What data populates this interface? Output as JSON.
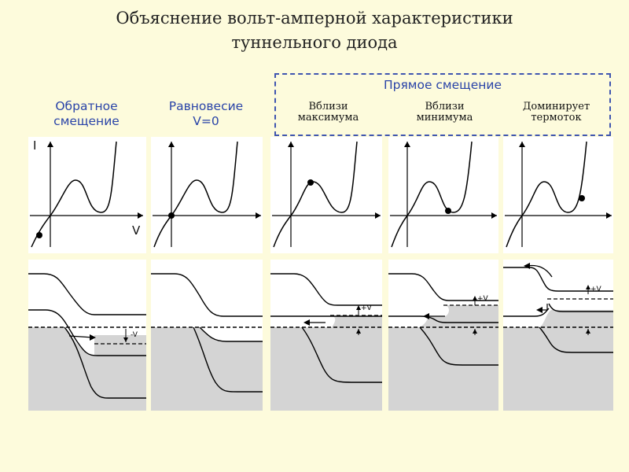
{
  "title_line1": "Объяснение вольт-амперной характеристики",
  "title_line2": "туннельного диода",
  "forward_bias_header": "Прямое смещение",
  "columns": [
    {
      "line1": "Обратное",
      "line2": "смещение"
    },
    {
      "line1": "Равновесие",
      "line2": "V=0"
    },
    {
      "line1": "Вблизи",
      "line2": "максимума"
    },
    {
      "line1": "Вблизи",
      "line2": "минимума"
    },
    {
      "line1": "Доминирует",
      "line2": "термоток"
    }
  ],
  "axis_labels": {
    "current": "I",
    "voltage": "V"
  },
  "voltage_marks": {
    "reverse": "-V",
    "forward": "+V"
  },
  "colors": {
    "background": "#fdfbdc",
    "header_blue": "#2a44a8",
    "fill_gray": "#d4d4d4"
  }
}
